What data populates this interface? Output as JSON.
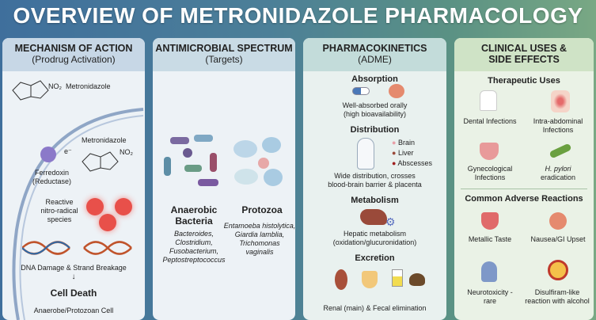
{
  "title": "OVERVIEW OF METRONIDAZOLE PHARMACOLOGY",
  "colors": {
    "header_bg": "#c7d7e6",
    "pk_header": "#c3dcda",
    "clin_header": "#cfe3c6",
    "radical": "#e8504a"
  },
  "moa": {
    "heading": "MECHANISM OF ACTION",
    "sub": "(Prodrug Activation)",
    "drug_label": "Metronidazole",
    "no2": "NO₂",
    "drug_label2": "Metronidazole",
    "electron": "e⁻",
    "enzyme": "Ferredoxin\n(Reductase)",
    "enzyme_l1": "Ferredoxin",
    "enzyme_l2": "(Reductase)",
    "radical_l1": "Reactive",
    "radical_l2": "nitro-radical",
    "radical_l3": "species",
    "dna": "DNA Damage & Strand Breakage",
    "death": "Cell Death",
    "cell": "Anaerobe/Protozoan Cell"
  },
  "spectrum": {
    "heading": "ANTIMICROBIAL SPECTRUM",
    "sub": "(Targets)",
    "bacteria_l1": "Anaerobic",
    "bacteria_l2": "Bacteria",
    "bacteria_list": [
      "Bacteroides,",
      "Clostridium,",
      "Fusobacterium,",
      "Peptostreptococcus"
    ],
    "protozoa": "Protozoa",
    "protozoa_list": [
      "Entamoeba histolytica,",
      "Giardia lamblia,",
      "Trichomonas",
      "vaginalis"
    ]
  },
  "pk": {
    "heading": "PHARMACOKINETICS",
    "sub": "(ADME)",
    "absorption": "Absorption",
    "abs_l1": "Well-absorbed orally",
    "abs_l2": "(high bioavailability)",
    "distribution": "Distribution",
    "organs": [
      "Brain",
      "Liver",
      "Abscesses"
    ],
    "dist_l1": "Wide distribution, crosses",
    "dist_l2": "blood-brain barrier & placenta",
    "metabolism": "Metabolism",
    "met_l1": "Hepatic metabolism",
    "met_l2": "(oxidation/glucuronidation)",
    "excretion": "Excretion",
    "exc": "Renal (main) & Fecal elimination"
  },
  "clinical": {
    "heading_l1": "CLINICAL USES &",
    "heading_l2": "SIDE EFFECTS",
    "uses_title": "Therapeutic Uses",
    "uses": [
      [
        "Dental Infections",
        ""
      ],
      [
        "Intra-abdominal",
        "Infections"
      ],
      [
        "Gynecological",
        "Infections"
      ],
      [
        "H. pylori",
        "eradication"
      ]
    ],
    "adverse_title": "Common Adverse Reactions",
    "adverse": [
      [
        "Metallic Taste",
        ""
      ],
      [
        "Nausea/GI Upset",
        ""
      ],
      [
        "Neurotoxicity -",
        "rare"
      ],
      [
        "Disulfiram-like",
        "reaction with alcohol"
      ]
    ]
  }
}
